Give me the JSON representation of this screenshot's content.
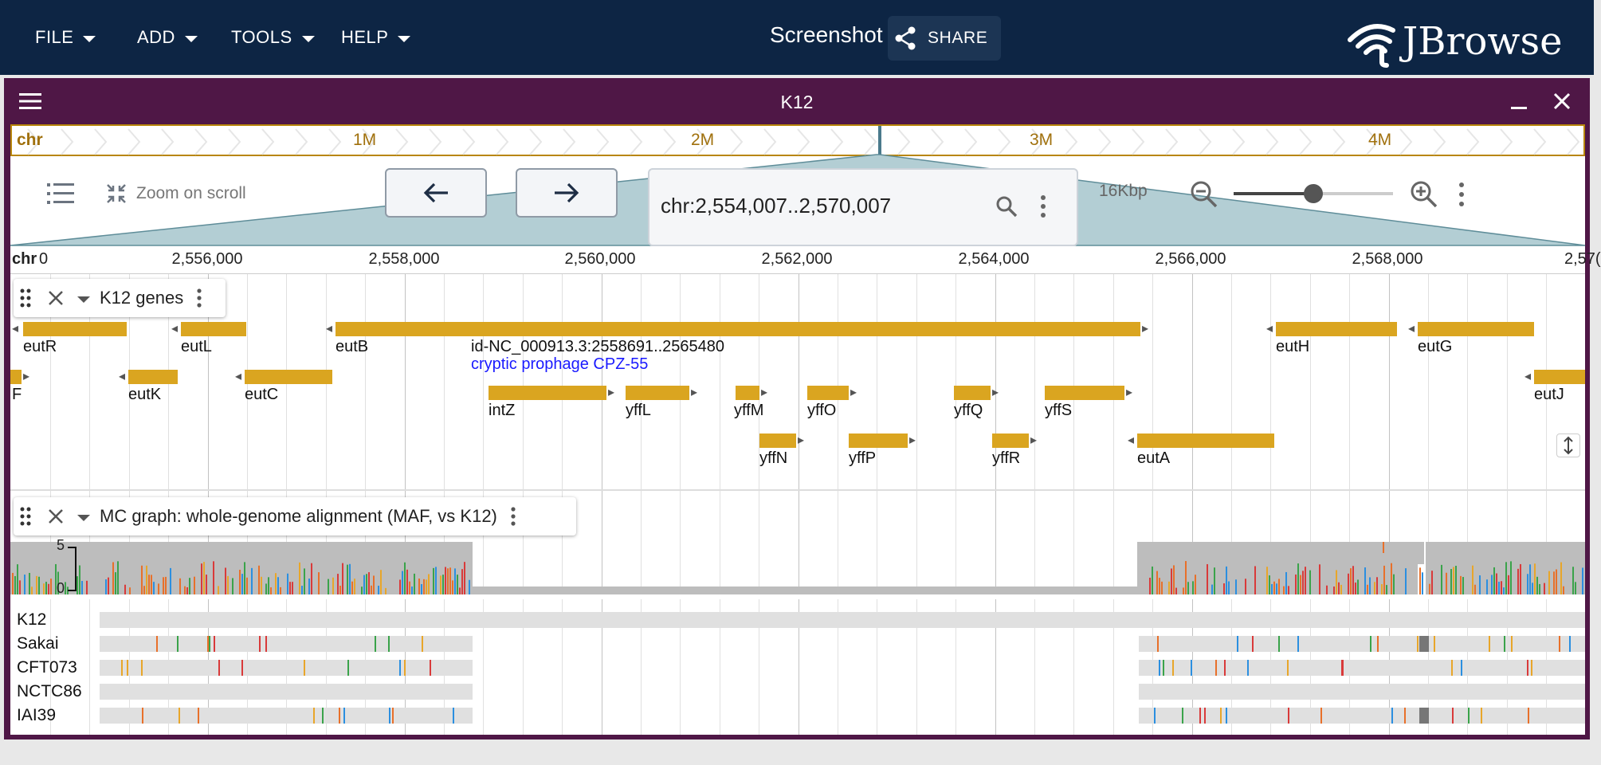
{
  "menu": {
    "items": [
      "FILE",
      "ADD",
      "TOOLS",
      "HELP"
    ]
  },
  "header": {
    "title": "Screenshot",
    "share_label": "SHARE",
    "logo_text": "JBrowse"
  },
  "view": {
    "title": "K12"
  },
  "overview": {
    "chr_label": "chr",
    "labels": [
      "1M",
      "2M",
      "3M",
      "4M"
    ]
  },
  "controls": {
    "zoom_on_scroll": "Zoom on scroll",
    "location": "chr:2,554,007..2,570,007",
    "span": "16Kbp",
    "zoom_level": 0.5
  },
  "scalebar": {
    "chr_label": "chr",
    "start_fragment": "0",
    "ticks": [
      "2,556,000",
      "2,558,000",
      "2,560,000",
      "2,562,000",
      "2,564,000",
      "2,566,000",
      "2,568,000",
      "2,57("
    ]
  },
  "tracks": {
    "genes": {
      "name": "K12 genes",
      "feature_label": "id-NC_000913.3:2558691..2565480",
      "feature_desc": "cryptic prophage CPZ-55",
      "genes": [
        "eutR",
        "eutL",
        "eutB",
        "eutH",
        "eutG",
        "F",
        "eutK",
        "eutC",
        "eutJ",
        "intZ",
        "yffL",
        "yffM",
        "yffO",
        "yffQ",
        "yffS",
        "yffN",
        "yffP",
        "yffR",
        "eutA"
      ]
    },
    "alignment": {
      "name": "MC graph: whole-genome alignment (MAF, vs K12)",
      "ymax": "5",
      "ymin": "0",
      "samples": [
        "K12",
        "Sakai",
        "CFT073",
        "NCTC86",
        "IAI39"
      ]
    }
  },
  "colors": {
    "topbar": "#0d2544",
    "view_header": "#4f1746",
    "gene": "#daa520",
    "overview_accent": "#b8860b"
  }
}
